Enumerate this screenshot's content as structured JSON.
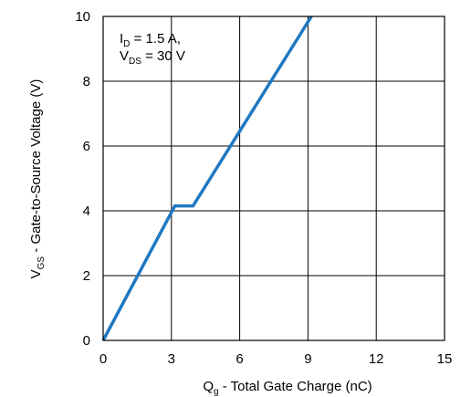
{
  "chart_data": {
    "type": "line",
    "title": "",
    "xlabel": {
      "main": "Q",
      "sub": "g",
      "rest": " - Total Gate Charge (nC)"
    },
    "ylabel": {
      "main": "V",
      "sub": "GS",
      "rest": " - Gate-to-Source Voltage (V)"
    },
    "xlim": [
      0,
      15
    ],
    "ylim": [
      0,
      10
    ],
    "xticks": [
      0,
      3,
      6,
      9,
      12,
      15
    ],
    "yticks": [
      0,
      2,
      4,
      6,
      8,
      10
    ],
    "grid": true,
    "series_color": "#1f78c1",
    "annotation": {
      "line1": {
        "main": "I",
        "sub": "D",
        "rest": " = 1.5 A,"
      },
      "line2": {
        "main": "V",
        "sub": "DS",
        "rest": " = 30 V"
      }
    },
    "series": [
      {
        "points": [
          [
            0,
            0
          ],
          [
            3.15,
            4.15
          ],
          [
            3.95,
            4.15
          ],
          [
            9.15,
            10
          ]
        ]
      }
    ]
  }
}
